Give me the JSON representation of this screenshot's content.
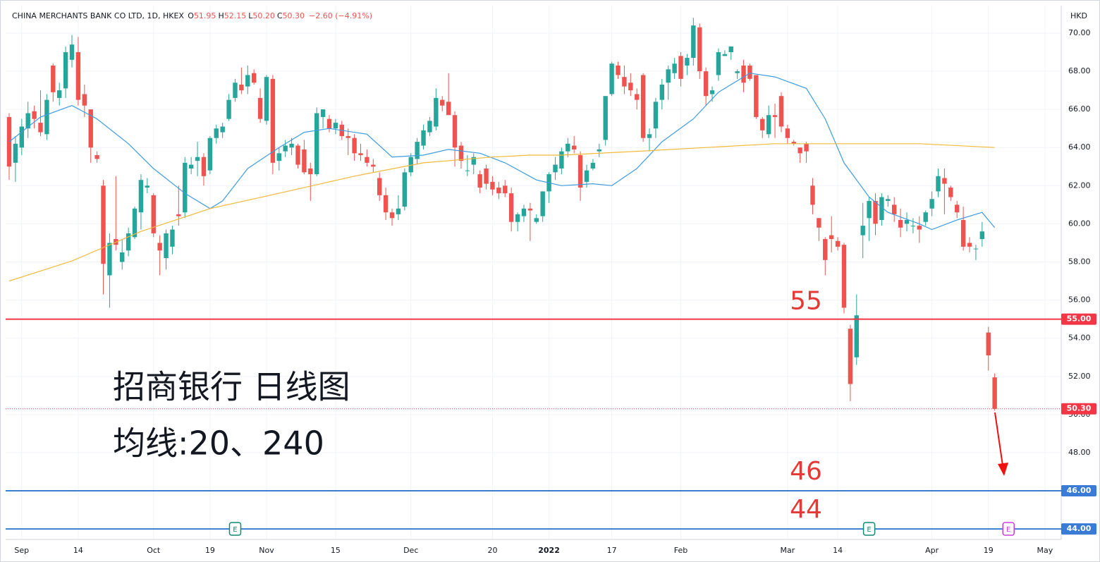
{
  "chart_data": {
    "type": "candlestick",
    "title": "CHINA MERCHANTS BANK CO LTD, 1D, HKEX",
    "header_values": [
      {
        "key": "O",
        "value": "51.95"
      },
      {
        "key": "H",
        "value": "52.15"
      },
      {
        "key": "L",
        "value": "50.20"
      },
      {
        "key": "C",
        "value": "50.30"
      }
    ],
    "change": "−2.60 (−4.91%)",
    "currency": "HKD",
    "up_color": "#26a69a",
    "down_color": "#ef5350",
    "xlim": [
      -0.56,
      167.6
    ],
    "ylim": [
      43.45,
      71.44
    ],
    "xticks": [
      {
        "value": 2,
        "label": "Sep"
      },
      {
        "value": 11,
        "label": "14"
      },
      {
        "value": 23,
        "label": "Oct"
      },
      {
        "value": 32,
        "label": "19"
      },
      {
        "value": 41,
        "label": "Nov"
      },
      {
        "value": 52,
        "label": "15"
      },
      {
        "value": 64,
        "label": "Dec"
      },
      {
        "value": 77,
        "label": "20"
      },
      {
        "value": 86,
        "label": "2022",
        "bold": true
      },
      {
        "value": 96,
        "label": "17"
      },
      {
        "value": 107,
        "label": "Feb"
      },
      {
        "value": 124,
        "label": "Mar"
      },
      {
        "value": 132,
        "label": "14"
      },
      {
        "value": 147,
        "label": "Apr"
      },
      {
        "value": 156,
        "label": "19"
      },
      {
        "value": 165,
        "label": "May"
      }
    ],
    "yticks": [
      {
        "value": 44,
        "label": "44.00"
      },
      {
        "value": 46,
        "label": "46.00"
      },
      {
        "value": 48,
        "label": "48.00"
      },
      {
        "value": 50,
        "label": "50.00"
      },
      {
        "value": 52,
        "label": "52.00"
      },
      {
        "value": 54,
        "label": "54.00"
      },
      {
        "value": 56,
        "label": "56.00"
      },
      {
        "value": 58,
        "label": "58.00"
      },
      {
        "value": 60,
        "label": "60.00"
      },
      {
        "value": 62,
        "label": "62.00"
      },
      {
        "value": 64,
        "label": "64.00"
      },
      {
        "value": 66,
        "label": "66.00"
      },
      {
        "value": 68,
        "label": "68.00"
      },
      {
        "value": 70,
        "label": "70.00"
      }
    ],
    "grid": true,
    "ohlc": [
      [
        65.6,
        65.8,
        62.3,
        63.0
      ],
      [
        63.2,
        64.6,
        62.2,
        64.2
      ],
      [
        64.0,
        65.5,
        63.6,
        65.1
      ],
      [
        65.0,
        66.4,
        64.5,
        65.8
      ],
      [
        65.9,
        66.2,
        65.0,
        65.5
      ],
      [
        65.3,
        67.0,
        64.6,
        64.8
      ],
      [
        64.7,
        66.8,
        64.4,
        66.5
      ],
      [
        68.3,
        68.4,
        66.4,
        66.9
      ],
      [
        66.6,
        67.4,
        66.2,
        67.0
      ],
      [
        67.1,
        69.3,
        66.6,
        69.0
      ],
      [
        68.6,
        69.9,
        68.2,
        69.4
      ],
      [
        69.0,
        69.8,
        66.2,
        66.5
      ],
      [
        66.8,
        67.3,
        65.6,
        66.2
      ],
      [
        66.0,
        66.0,
        63.2,
        64.0
      ],
      [
        63.6,
        63.8,
        63.2,
        63.4
      ],
      [
        62.0,
        62.3,
        56.3,
        57.9
      ],
      [
        57.3,
        59.5,
        55.6,
        59.0
      ],
      [
        59.2,
        62.5,
        58.6,
        58.9
      ],
      [
        58.0,
        59.2,
        57.6,
        58.5
      ],
      [
        58.6,
        59.8,
        58.3,
        59.5
      ],
      [
        59.3,
        60.9,
        59.2,
        60.8
      ],
      [
        60.6,
        62.6,
        59.7,
        62.3
      ],
      [
        61.9,
        62.4,
        61.6,
        62.0
      ],
      [
        61.5,
        61.6,
        59.3,
        59.5
      ],
      [
        59.0,
        59.4,
        57.3,
        58.6
      ],
      [
        58.2,
        59.7,
        57.6,
        59.5
      ],
      [
        58.8,
        59.9,
        58.4,
        59.7
      ],
      [
        60.5,
        62.0,
        59.9,
        60.4
      ],
      [
        60.6,
        63.5,
        60.3,
        63.2
      ],
      [
        62.9,
        63.5,
        62.6,
        63.1
      ],
      [
        63.3,
        64.3,
        62.5,
        63.5
      ],
      [
        63.5,
        63.7,
        62.0,
        62.5
      ],
      [
        62.8,
        64.6,
        62.6,
        64.5
      ],
      [
        64.5,
        65.2,
        64.2,
        65.0
      ],
      [
        64.8,
        65.3,
        64.5,
        65.1
      ],
      [
        65.5,
        66.8,
        65.4,
        66.5
      ],
      [
        66.6,
        67.6,
        66.4,
        67.4
      ],
      [
        67.3,
        68.2,
        66.8,
        67.0
      ],
      [
        67.2,
        68.3,
        66.8,
        67.8
      ],
      [
        67.9,
        68.1,
        67.3,
        67.4
      ],
      [
        66.6,
        67.1,
        65.3,
        65.5
      ],
      [
        65.4,
        67.8,
        65.2,
        67.7
      ],
      [
        67.6,
        67.8,
        62.6,
        63.2
      ],
      [
        63.3,
        64.0,
        62.8,
        63.7
      ],
      [
        63.8,
        64.4,
        63.5,
        64.1
      ],
      [
        64.0,
        64.5,
        63.6,
        64.2
      ],
      [
        64.1,
        64.2,
        62.9,
        63.1
      ],
      [
        63.9,
        64.4,
        62.6,
        62.7
      ],
      [
        62.9,
        63.2,
        61.2,
        62.6
      ],
      [
        62.6,
        66.1,
        62.5,
        65.8
      ],
      [
        65.6,
        66.0,
        65.0,
        66.0
      ],
      [
        65.5,
        65.7,
        64.8,
        65.0
      ],
      [
        65.0,
        65.5,
        64.7,
        65.3
      ],
      [
        65.2,
        65.4,
        64.4,
        64.6
      ],
      [
        64.6,
        65.0,
        63.6,
        64.5
      ],
      [
        64.5,
        64.7,
        63.3,
        63.7
      ],
      [
        63.7,
        64.2,
        63.3,
        63.6
      ],
      [
        63.5,
        63.9,
        63.0,
        63.2
      ],
      [
        63.1,
        63.4,
        62.7,
        63.0
      ],
      [
        62.4,
        62.7,
        61.2,
        61.5
      ],
      [
        61.5,
        61.9,
        60.2,
        60.6
      ],
      [
        60.6,
        60.8,
        59.9,
        60.3
      ],
      [
        60.5,
        61.5,
        60.2,
        60.8
      ],
      [
        60.9,
        62.9,
        60.7,
        62.7
      ],
      [
        62.7,
        63.7,
        62.5,
        63.5
      ],
      [
        63.4,
        64.5,
        63.1,
        64.3
      ],
      [
        64.1,
        65.2,
        63.9,
        64.9
      ],
      [
        64.8,
        65.6,
        64.6,
        65.4
      ],
      [
        65.1,
        67.1,
        64.9,
        66.6
      ],
      [
        66.5,
        66.7,
        65.9,
        66.2
      ],
      [
        66.4,
        67.9,
        65.9,
        65.7
      ],
      [
        65.7,
        65.9,
        63.0,
        64.0
      ],
      [
        64.1,
        64.3,
        62.9,
        63.3
      ],
      [
        62.8,
        63.6,
        62.5,
        62.8
      ],
      [
        63.1,
        63.7,
        62.6,
        63.5
      ],
      [
        62.6,
        62.8,
        61.6,
        61.9
      ],
      [
        62.9,
        63.1,
        61.8,
        62.1
      ],
      [
        62.2,
        62.5,
        61.5,
        61.8
      ],
      [
        61.9,
        62.2,
        61.3,
        61.6
      ],
      [
        62.0,
        62.3,
        61.4,
        61.6
      ],
      [
        61.6,
        61.9,
        59.6,
        60.1
      ],
      [
        60.1,
        60.6,
        59.6,
        60.5
      ],
      [
        60.4,
        61.0,
        60.1,
        60.8
      ],
      [
        60.8,
        61.1,
        59.1,
        60.7
      ],
      [
        60.1,
        60.5,
        60.0,
        60.3
      ],
      [
        60.4,
        61.7,
        60.1,
        61.7
      ],
      [
        61.7,
        62.7,
        61.1,
        62.6
      ],
      [
        62.7,
        63.5,
        62.3,
        63.1
      ],
      [
        62.9,
        64.0,
        62.6,
        63.8
      ],
      [
        63.8,
        64.5,
        63.5,
        64.2
      ],
      [
        64.1,
        64.6,
        63.7,
        63.9
      ],
      [
        63.6,
        63.8,
        61.2,
        61.9
      ],
      [
        62.2,
        63.1,
        61.9,
        62.8
      ],
      [
        62.9,
        63.4,
        62.8,
        63.2
      ],
      [
        63.8,
        64.2,
        63.5,
        63.9
      ],
      [
        64.4,
        66.7,
        64.1,
        66.7
      ],
      [
        66.8,
        68.5,
        66.7,
        68.4
      ],
      [
        68.3,
        68.5,
        67.6,
        67.8
      ],
      [
        67.7,
        68.3,
        66.8,
        67.2
      ],
      [
        67.4,
        67.9,
        66.7,
        67.0
      ],
      [
        66.8,
        67.1,
        66.0,
        66.5
      ],
      [
        67.8,
        67.9,
        64.3,
        64.5
      ],
      [
        64.5,
        65.0,
        63.8,
        64.7
      ],
      [
        65.0,
        66.6,
        64.5,
        66.4
      ],
      [
        66.5,
        67.6,
        66.0,
        67.3
      ],
      [
        67.4,
        68.3,
        66.5,
        68.1
      ],
      [
        67.9,
        68.7,
        67.6,
        68.4
      ],
      [
        68.8,
        69.0,
        67.2,
        67.6
      ],
      [
        68.3,
        68.9,
        67.8,
        68.7
      ],
      [
        68.7,
        70.8,
        68.3,
        70.4
      ],
      [
        70.3,
        70.5,
        67.6,
        68.0
      ],
      [
        68.0,
        68.2,
        66.2,
        66.7
      ],
      [
        66.8,
        67.2,
        66.4,
        67.0
      ],
      [
        67.8,
        69.2,
        67.5,
        69.0
      ],
      [
        68.8,
        69.1,
        68.8,
        68.9
      ],
      [
        69.0,
        69.3,
        68.6,
        69.3
      ],
      [
        67.9,
        68.1,
        67.6,
        68.0
      ],
      [
        68.3,
        68.6,
        66.9,
        67.4
      ],
      [
        68.3,
        68.4,
        67.5,
        67.6
      ],
      [
        67.8,
        67.8,
        65.5,
        65.6
      ],
      [
        65.5,
        65.6,
        64.5,
        64.9
      ],
      [
        64.7,
        66.2,
        64.5,
        65.7
      ],
      [
        65.7,
        66.3,
        64.5,
        65.6
      ],
      [
        66.7,
        66.9,
        64.8,
        65.1
      ],
      [
        65.0,
        65.2,
        64.2,
        64.5
      ],
      [
        64.3,
        64.4,
        64.1,
        64.2
      ],
      [
        64.0,
        64.0,
        63.2,
        63.7
      ],
      [
        64.2,
        64.3,
        63.2,
        63.8
      ],
      [
        62.0,
        62.4,
        60.5,
        61.0
      ],
      [
        60.3,
        60.3,
        59.1,
        59.8
      ],
      [
        59.2,
        59.3,
        57.3,
        58.1
      ],
      [
        59.4,
        60.4,
        58.5,
        59.2
      ],
      [
        59.1,
        59.3,
        58.6,
        58.8
      ],
      [
        58.9,
        59.0,
        55.3,
        55.6
      ],
      [
        54.5,
        54.7,
        50.7,
        51.6
      ],
      [
        53.0,
        56.3,
        52.6,
        55.2
      ],
      [
        59.4,
        61.1,
        58.2,
        59.9
      ],
      [
        60.3,
        61.4,
        59.1,
        61.2
      ],
      [
        61.2,
        61.6,
        59.4,
        60.0
      ],
      [
        60.2,
        61.6,
        59.9,
        61.4
      ],
      [
        61.2,
        61.5,
        60.9,
        61.3
      ],
      [
        61.0,
        61.4,
        60.1,
        60.5
      ],
      [
        60.2,
        60.8,
        59.3,
        59.8
      ],
      [
        60.0,
        60.6,
        59.6,
        60.2
      ],
      [
        59.9,
        60.3,
        59.5,
        59.9
      ],
      [
        59.9,
        60.4,
        59.0,
        59.7
      ],
      [
        60.1,
        60.7,
        59.9,
        60.6
      ],
      [
        60.8,
        61.7,
        60.4,
        61.3
      ],
      [
        61.7,
        62.9,
        61.4,
        62.5
      ],
      [
        62.4,
        62.9,
        60.5,
        62.1
      ],
      [
        61.9,
        62.0,
        61.2,
        61.4
      ],
      [
        61.0,
        61.2,
        60.3,
        60.6
      ],
      [
        60.2,
        60.9,
        58.6,
        58.8
      ],
      [
        59.0,
        59.3,
        58.5,
        58.8
      ],
      [
        58.7,
        58.9,
        58.1,
        58.7
      ],
      [
        59.2,
        60.1,
        58.8,
        59.6
      ],
      [
        54.3,
        54.6,
        52.3,
        53.1
      ],
      [
        51.95,
        52.15,
        50.2,
        50.3
      ]
    ],
    "moving_averages": [
      {
        "color": "#3d9be0",
        "x": [
          0,
          5,
          10,
          14,
          19,
          23,
          28,
          32,
          34,
          38,
          43,
          47,
          51,
          57,
          61,
          66,
          70,
          75,
          79,
          84,
          88,
          93,
          96,
          100,
          104,
          109,
          113,
          118,
          122,
          127,
          130,
          133,
          137,
          140,
          145,
          147,
          151,
          155,
          157
        ],
        "values": [
          64.3,
          65.6,
          66.2,
          65.5,
          64.2,
          62.9,
          61.6,
          60.8,
          61.2,
          62.9,
          64.0,
          64.8,
          65.0,
          64.7,
          63.5,
          63.6,
          63.9,
          63.7,
          63.2,
          62.3,
          62.0,
          62.1,
          62.0,
          62.9,
          64.3,
          65.5,
          66.9,
          67.9,
          67.7,
          67.1,
          65.5,
          63.2,
          61.4,
          60.6,
          60.0,
          59.7,
          60.2,
          60.6,
          59.8
        ]
      },
      {
        "color": "#f2b93b",
        "x": [
          0,
          10,
          21,
          32,
          43,
          55,
          66,
          77,
          83,
          88,
          100,
          111,
          122,
          133,
          145,
          157
        ],
        "values": [
          57.0,
          58.05,
          59.6,
          60.8,
          61.6,
          62.5,
          63.2,
          63.5,
          63.6,
          63.6,
          63.8,
          64.0,
          64.2,
          64.2,
          64.2,
          64.0
        ]
      }
    ],
    "levels": [
      {
        "value": 55,
        "label": "55.00",
        "annotation": "55",
        "color": "#f23645"
      },
      {
        "value": 46,
        "label": "46.00",
        "annotation": "46",
        "color": "#3a7bd5"
      },
      {
        "value": 44,
        "label": "44.00",
        "annotation": "44",
        "color": "#3a7bd5"
      }
    ],
    "last_price": {
      "value": 50.3,
      "label": "50.30",
      "color": "#f23645"
    },
    "events": [
      {
        "x": 36,
        "label": "E",
        "color": "#138a72"
      },
      {
        "x": 137,
        "label": "E",
        "color": "#138a72"
      },
      {
        "x": 159.2,
        "label": "E",
        "color": "#d23ae0"
      }
    ],
    "annotations": [
      "招商银行 日线图",
      "均线:20、240"
    ]
  }
}
